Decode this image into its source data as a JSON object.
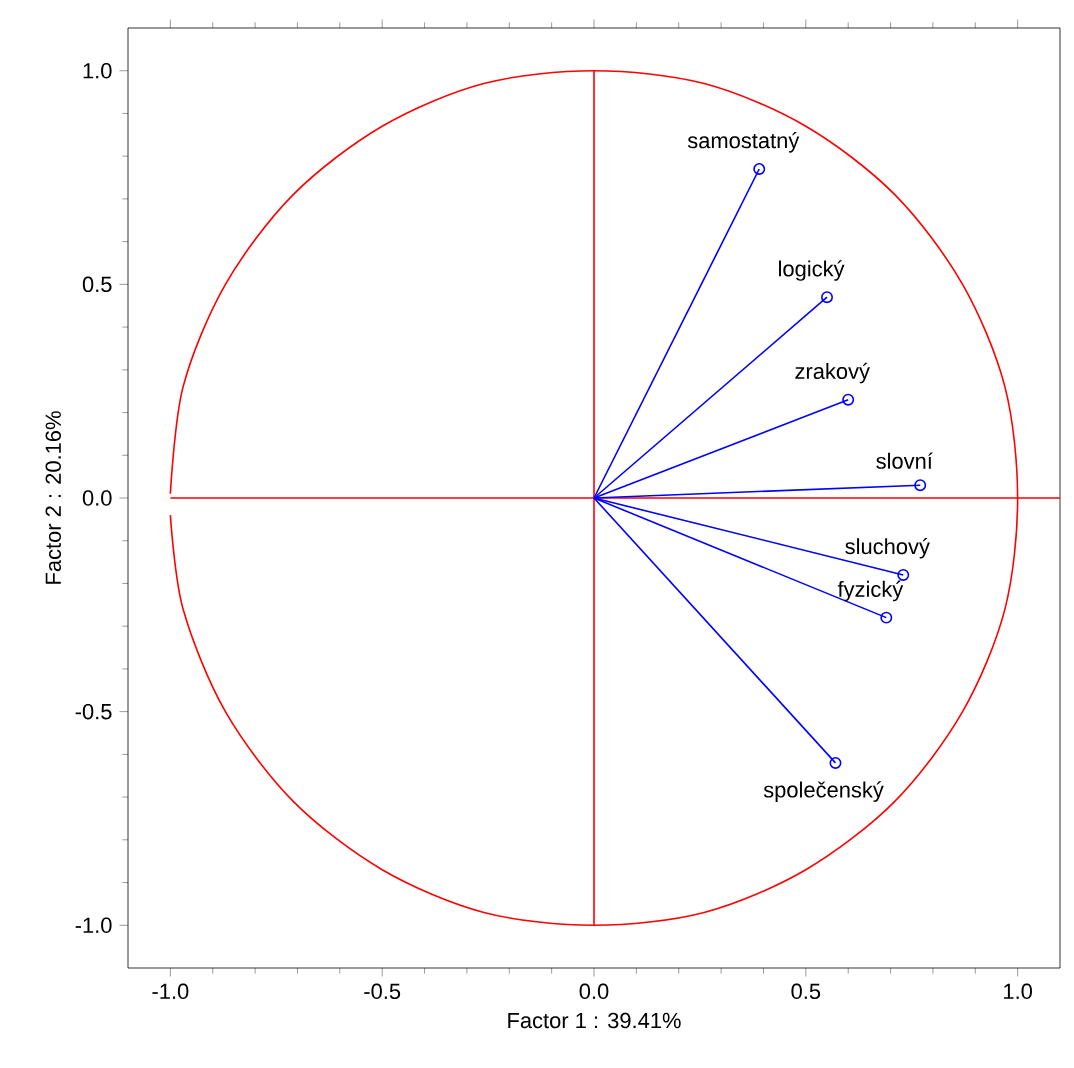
{
  "chart_data": {
    "type": "scatter",
    "xlabel": "Factor 1 : 39.41%",
    "ylabel": "Factor 2 : 20.16%",
    "xlim": [
      -1.1,
      1.1
    ],
    "ylim": [
      -1.1,
      1.1
    ],
    "xticks": [
      {
        "value": -1,
        "label": "-1.0"
      },
      {
        "value": -0.5,
        "label": "-0.5"
      },
      {
        "value": 0,
        "label": "0.0"
      },
      {
        "value": 0.5,
        "label": "0.5"
      },
      {
        "value": 1,
        "label": "1.0"
      }
    ],
    "yticks": [
      {
        "value": -1,
        "label": "-1.0"
      },
      {
        "value": -0.5,
        "label": "-0.5"
      },
      {
        "value": 0,
        "label": "0.0"
      },
      {
        "value": 0.5,
        "label": "0.5"
      },
      {
        "value": 1,
        "label": "1.0"
      }
    ],
    "grid": false,
    "marker": "circle",
    "series": [
      {
        "type": "line",
        "marker": "none",
        "color": "#ff0000",
        "x": [
          0,
          0
        ],
        "values": [
          -1,
          1
        ]
      },
      {
        "type": "line",
        "marker": "none",
        "color": "#ff0000",
        "x": [
          -1,
          1.1
        ],
        "values": [
          0,
          0
        ]
      },
      {
        "type": "line",
        "marker": "none",
        "color": "#ff0000",
        "x": [
          -1,
          -0.97,
          -0.87,
          -0.71,
          -0.5,
          -0.26,
          0,
          0.26,
          0.5,
          0.71,
          0.87,
          0.97,
          1,
          0.97,
          0.87,
          0.71,
          0.5,
          0.26,
          0,
          -0.26,
          -0.5,
          -0.71,
          -0.87,
          -0.97,
          -1
        ],
        "values": [
          0.01,
          0.26,
          0.5,
          0.71,
          0.87,
          0.97,
          1,
          0.97,
          0.87,
          0.71,
          0.5,
          0.26,
          0,
          -0.26,
          -0.5,
          -0.71,
          -0.87,
          -0.97,
          -1,
          -0.97,
          -0.87,
          -0.71,
          -0.5,
          -0.26,
          -0.04
        ]
      },
      {
        "type": "line",
        "marker": "none",
        "color": "#0000ff",
        "x": [
          0,
          0.39
        ],
        "values": [
          0,
          0.77
        ]
      },
      {
        "type": "line",
        "marker": "none",
        "color": "#0000ff",
        "x": [
          0,
          0.55
        ],
        "values": [
          0,
          0.47
        ]
      },
      {
        "type": "line",
        "marker": "none",
        "color": "#0000ff",
        "x": [
          0,
          0.6
        ],
        "values": [
          0,
          0.23
        ]
      },
      {
        "type": "line",
        "marker": "none",
        "color": "#0000ff",
        "x": [
          0,
          0.77
        ],
        "values": [
          0,
          0.03
        ]
      },
      {
        "type": "line",
        "marker": "none",
        "color": "#0000ff",
        "x": [
          0,
          0.73
        ],
        "values": [
          0,
          -0.18
        ]
      },
      {
        "type": "line",
        "marker": "none",
        "color": "#0000ff",
        "x": [
          0,
          0.69
        ],
        "values": [
          0,
          -0.28
        ]
      },
      {
        "type": "line",
        "marker": "none",
        "color": "#0000ff",
        "x": [
          0,
          0.57
        ],
        "values": [
          0,
          -0.62
        ]
      },
      {
        "color": "#0000ff",
        "x": [
          0.39,
          0.55,
          0.6,
          0.77,
          0.73,
          0.69,
          0.57
        ],
        "values": [
          0.77,
          0.47,
          0.23,
          0.03,
          -0.18,
          -0.28,
          -0.62
        ]
      }
    ],
    "annotations": [
      {
        "text": "samostatný",
        "x": 0.39,
        "y": 0.77
      },
      {
        "text": "logický",
        "x": 0.55,
        "y": 0.47
      },
      {
        "text": "zrakový",
        "x": 0.6,
        "y": 0.23
      },
      {
        "text": "slovní",
        "x": 0.77,
        "y": 0.03
      },
      {
        "text": "sluchový",
        "x": 0.73,
        "y": -0.18
      },
      {
        "text": "fyzický",
        "x": 0.69,
        "y": -0.28
      },
      {
        "text": "společenský",
        "x": 0.57,
        "y": -0.62
      }
    ]
  }
}
